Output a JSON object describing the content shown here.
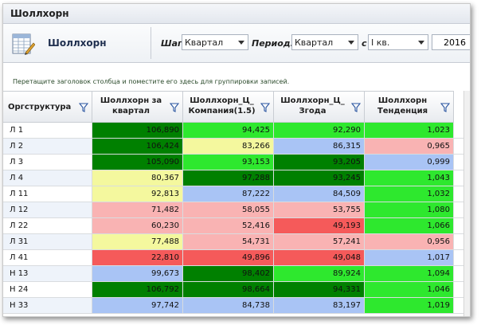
{
  "window": {
    "title": "Шоллхорн"
  },
  "toolbar": {
    "app_name": "Шоллхорн",
    "app_icon": "spreadsheet-pencil-icon",
    "step_label": "Шаг:",
    "step_value": "Квартал",
    "period_label": "Период:",
    "period_value": "Квартал",
    "from_label": "с",
    "from_value": "I кв.",
    "year_value": "2016"
  },
  "group_hint": "Перетащите заголовок столбца и поместите его здесь для группировки записей.",
  "colors": {
    "dark_green": "#008000",
    "green": "#2ee82e",
    "yellow": "#f4f89e",
    "blue": "#a9c4f5",
    "pink": "#f9b3b3",
    "red": "#f55a5a"
  },
  "columns": [
    {
      "label": "Оргструктура"
    },
    {
      "label": "Шоллхорн за квартал"
    },
    {
      "label": "Шоллхорн_Ц_ Компания(1.5)"
    },
    {
      "label": "Шоллхорн_Ц_ Згода"
    },
    {
      "label": "Шоллхорн Тенденция"
    }
  ],
  "rows": [
    {
      "name": "Л 1",
      "cells": [
        {
          "v": "106,890",
          "c": "dark_green"
        },
        {
          "v": "94,425",
          "c": "green"
        },
        {
          "v": "92,290",
          "c": "green"
        },
        {
          "v": "1,023",
          "c": "green"
        }
      ]
    },
    {
      "name": "Л 2",
      "cells": [
        {
          "v": "106,424",
          "c": "dark_green"
        },
        {
          "v": "83,266",
          "c": "yellow"
        },
        {
          "v": "86,315",
          "c": "blue"
        },
        {
          "v": "0,965",
          "c": "pink"
        }
      ]
    },
    {
      "name": "Л 3",
      "cells": [
        {
          "v": "105,090",
          "c": "dark_green"
        },
        {
          "v": "93,153",
          "c": "green"
        },
        {
          "v": "93,205",
          "c": "dark_green"
        },
        {
          "v": "0,999",
          "c": "blue"
        }
      ]
    },
    {
      "name": "Л 4",
      "cells": [
        {
          "v": "80,367",
          "c": "yellow"
        },
        {
          "v": "97,288",
          "c": "dark_green"
        },
        {
          "v": "93,245",
          "c": "dark_green"
        },
        {
          "v": "1,043",
          "c": "green"
        }
      ]
    },
    {
      "name": "Л 11",
      "cells": [
        {
          "v": "92,813",
          "c": "yellow"
        },
        {
          "v": "87,222",
          "c": "blue"
        },
        {
          "v": "84,509",
          "c": "blue"
        },
        {
          "v": "1,032",
          "c": "green"
        }
      ]
    },
    {
      "name": "Л 12",
      "cells": [
        {
          "v": "71,482",
          "c": "pink"
        },
        {
          "v": "58,055",
          "c": "pink"
        },
        {
          "v": "53,755",
          "c": "pink"
        },
        {
          "v": "1,080",
          "c": "green"
        }
      ]
    },
    {
      "name": "Л 22",
      "cells": [
        {
          "v": "60,230",
          "c": "pink"
        },
        {
          "v": "52,416",
          "c": "pink"
        },
        {
          "v": "49,193",
          "c": "red"
        },
        {
          "v": "1,066",
          "c": "green"
        }
      ]
    },
    {
      "name": "Л 31",
      "cells": [
        {
          "v": "77,488",
          "c": "yellow"
        },
        {
          "v": "54,731",
          "c": "pink"
        },
        {
          "v": "57,241",
          "c": "pink"
        },
        {
          "v": "0,956",
          "c": "pink"
        }
      ]
    },
    {
      "name": "Л 41",
      "cells": [
        {
          "v": "22,810",
          "c": "red"
        },
        {
          "v": "49,896",
          "c": "red"
        },
        {
          "v": "49,048",
          "c": "red"
        },
        {
          "v": "1,017",
          "c": "blue"
        }
      ]
    },
    {
      "name": "Н 13",
      "cells": [
        {
          "v": "99,673",
          "c": "blue"
        },
        {
          "v": "98,402",
          "c": "dark_green"
        },
        {
          "v": "89,924",
          "c": "green"
        },
        {
          "v": "1,094",
          "c": "green"
        }
      ]
    },
    {
      "name": "Н 24",
      "cells": [
        {
          "v": "106,792",
          "c": "dark_green"
        },
        {
          "v": "98,664",
          "c": "dark_green"
        },
        {
          "v": "94,331",
          "c": "dark_green"
        },
        {
          "v": "1,046",
          "c": "green"
        }
      ]
    },
    {
      "name": "Н 33",
      "cells": [
        {
          "v": "97,742",
          "c": "blue"
        },
        {
          "v": "84,738",
          "c": "blue"
        },
        {
          "v": "83,197",
          "c": "blue"
        },
        {
          "v": "1,019",
          "c": "green"
        }
      ]
    }
  ]
}
